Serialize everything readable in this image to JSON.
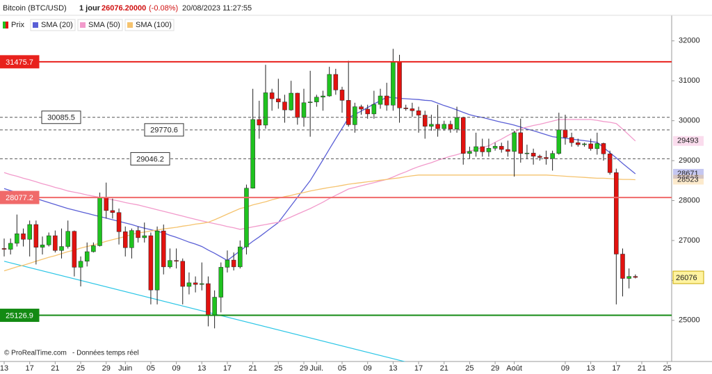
{
  "chart_data": {
    "type": "candlestick",
    "header": {
      "instrument": "Bitcoin (BTC/USD)",
      "period": "1 jour",
      "price_text": "26076.20000",
      "change": "(-0.08%)",
      "datetime": "20/08/2023 11:27:55"
    },
    "footer": {
      "source": "© ProRealTime.com",
      "note": "- Données temps réel"
    },
    "price_name": "Prix",
    "up_color": "#1fc21f",
    "down_color": "#e2120f",
    "categories": [
      "13",
      null,
      null,
      null,
      "17",
      null,
      null,
      null,
      "21",
      null,
      null,
      null,
      "25",
      null,
      null,
      null,
      "29",
      null,
      null,
      "Juin",
      null,
      null,
      null,
      "05",
      null,
      null,
      null,
      "09",
      null,
      null,
      null,
      "13",
      null,
      null,
      null,
      "17",
      null,
      null,
      null,
      "21",
      null,
      null,
      null,
      "25",
      null,
      null,
      null,
      "29",
      null,
      "Juil.",
      null,
      null,
      null,
      "05",
      null,
      null,
      null,
      "09",
      null,
      null,
      null,
      "13",
      null,
      null,
      null,
      "17",
      null,
      null,
      null,
      "21",
      null,
      null,
      null,
      "25",
      null,
      null,
      null,
      "29",
      null,
      null,
      "Août",
      null,
      null,
      null,
      null,
      null,
      null,
      null,
      "09",
      null,
      null,
      null,
      "13",
      null,
      null,
      null,
      "17",
      null,
      null,
      null,
      "21",
      null,
      null,
      null,
      "25"
    ],
    "open": [
      26800,
      26780,
      26930,
      27170,
      27030,
      27400,
      26830,
      26890,
      27120,
      26750,
      26850,
      27230,
      26330,
      26480,
      26720,
      26870,
      28080,
      27750,
      27700,
      27220,
      26820,
      27250,
      27070,
      27120,
      25760,
      27240,
      26340,
      26500,
      26480,
      25850,
      25940,
      25900,
      25920,
      25120,
      25580,
      26330,
      26510,
      26340,
      26840,
      28310,
      30030,
      29890,
      30700,
      30550,
      30470,
      30270,
      30690,
      30080,
      30450,
      30470,
      30590,
      30620,
      31160,
      30770,
      30510,
      29900,
      30350,
      30290,
      30170,
      30410,
      30620,
      30390,
      31470,
      30320,
      30300,
      30250,
      30140,
      29860,
      29910,
      29800,
      29910,
      29790,
      30080,
      29180,
      29230,
      29350,
      29220,
      29310,
      29360,
      29280,
      29230,
      29700,
      29180,
      29190,
      29110,
      29080,
      29050,
      29180,
      29770,
      29580,
      29450,
      29400,
      29420,
      29300,
      29430,
      29170,
      28700,
      26660,
      26050,
      26100,
      null,
      null,
      null,
      null,
      null
    ],
    "high": [
      27050,
      27050,
      27650,
      27300,
      27500,
      27500,
      27100,
      27200,
      27250,
      27300,
      27500,
      27250,
      26600,
      26950,
      26950,
      28200,
      28450,
      28050,
      27800,
      27350,
      27300,
      27350,
      27450,
      27200,
      27350,
      27400,
      26800,
      26800,
      26550,
      26200,
      26100,
      26450,
      26100,
      25750,
      26450,
      26750,
      26700,
      27000,
      28400,
      30800,
      30500,
      31400,
      30800,
      31050,
      30650,
      31000,
      30700,
      30800,
      31250,
      30650,
      30750,
      31350,
      31300,
      30850,
      31500,
      30450,
      30400,
      30400,
      30750,
      30800,
      30950,
      31800,
      31650,
      30400,
      30450,
      30350,
      30250,
      30150,
      30400,
      30000,
      30000,
      30350,
      30100,
      29350,
      29700,
      29550,
      29550,
      29450,
      29450,
      29500,
      29750,
      30050,
      29400,
      29300,
      29150,
      29250,
      29250,
      30200,
      30150,
      29700,
      29550,
      29450,
      29550,
      29700,
      29450,
      29250,
      28800,
      26800,
      26300,
      26150,
      null,
      null,
      null,
      null,
      null
    ],
    "low": [
      26600,
      26650,
      26850,
      26850,
      26600,
      26400,
      26650,
      26850,
      26700,
      26550,
      26800,
      26100,
      25850,
      26350,
      26700,
      26850,
      27550,
      27550,
      26900,
      26600,
      26550,
      26950,
      26950,
      25400,
      25400,
      26150,
      26300,
      26300,
      25400,
      25650,
      25700,
      25750,
      24850,
      24800,
      25200,
      26200,
      26250,
      26300,
      26650,
      28300,
      29550,
      29800,
      30250,
      30300,
      29950,
      30250,
      29900,
      29850,
      29600,
      30350,
      30250,
      30600,
      30650,
      30200,
      29850,
      29700,
      30150,
      30050,
      30050,
      30300,
      30250,
      30250,
      29950,
      30250,
      30100,
      29700,
      29550,
      29750,
      29600,
      29750,
      29700,
      29700,
      28900,
      29050,
      29100,
      29100,
      29100,
      29250,
      29200,
      29100,
      28600,
      28950,
      29050,
      28900,
      29000,
      28900,
      28750,
      29150,
      29400,
      29350,
      29350,
      29350,
      29250,
      29150,
      29000,
      28650,
      25400,
      25600,
      25800,
      26050,
      null,
      null,
      null,
      null,
      null
    ],
    "close": [
      26780,
      26930,
      27170,
      27030,
      27400,
      26830,
      26890,
      27120,
      26750,
      26850,
      27230,
      26330,
      26480,
      26720,
      26870,
      28080,
      27750,
      27700,
      27220,
      26820,
      27250,
      27070,
      27120,
      25760,
      27240,
      26340,
      26500,
      26480,
      25850,
      25940,
      25900,
      25920,
      25120,
      25580,
      26330,
      26510,
      26340,
      26840,
      28310,
      30030,
      29890,
      30700,
      30550,
      30470,
      30270,
      30690,
      30080,
      30450,
      30470,
      30590,
      30620,
      31160,
      30770,
      30510,
      29900,
      30350,
      30290,
      30170,
      30410,
      30620,
      30390,
      31470,
      30320,
      30300,
      30250,
      30140,
      29860,
      29910,
      29800,
      29910,
      29790,
      30080,
      29180,
      29230,
      29350,
      29220,
      29310,
      29360,
      29280,
      29230,
      29700,
      29180,
      29190,
      29110,
      29080,
      29050,
      29180,
      29770,
      29580,
      29450,
      29400,
      29420,
      29300,
      29430,
      29170,
      28700,
      26660,
      26050,
      26100,
      26076.2,
      null,
      null,
      null,
      null,
      null
    ],
    "last_price": {
      "value": 26076.2,
      "label": "26076"
    },
    "series": [
      {
        "name": "SMA (20)",
        "color": "#5a5fd6",
        "values": [
          28300,
          28250,
          28200,
          28150,
          28100,
          28050,
          28000,
          27950,
          27900,
          27850,
          27800,
          27760,
          27720,
          27680,
          27640,
          27600,
          27560,
          27520,
          27480,
          27440,
          27400,
          27350,
          27310,
          27270,
          27230,
          27190,
          27130,
          27080,
          27020,
          26960,
          26910,
          26850,
          26760,
          26680,
          26590,
          26500,
          26620,
          26740,
          26860,
          26980,
          27090,
          27210,
          27330,
          27450,
          27660,
          27870,
          28080,
          28290,
          28500,
          28760,
          29020,
          29290,
          29550,
          29810,
          30070,
          30160,
          30240,
          30330,
          30420,
          30500,
          30590,
          30580,
          30560,
          30550,
          30540,
          30530,
          30510,
          30500,
          30440,
          30380,
          30330,
          30270,
          30210,
          30150,
          30110,
          30080,
          30040,
          30000,
          29960,
          29930,
          29890,
          29840,
          29790,
          29750,
          29700,
          29650,
          29600,
          29580,
          29560,
          29540,
          29520,
          29500,
          29480,
          29460,
          29330,
          29200,
          29070,
          28930,
          28800,
          28671,
          null,
          null,
          null,
          null,
          null
        ]
      },
      {
        "name": "SMA (50)",
        "color": "#f29acb",
        "values": [
          28700,
          28650,
          28610,
          28560,
          28520,
          28470,
          28420,
          28380,
          28330,
          28290,
          28240,
          28210,
          28180,
          28140,
          28110,
          28080,
          28050,
          28020,
          27990,
          27950,
          27920,
          27890,
          27850,
          27810,
          27770,
          27730,
          27690,
          27650,
          27610,
          27570,
          27530,
          27490,
          27455,
          27420,
          27390,
          27350,
          27320,
          27280,
          27310,
          27340,
          27370,
          27400,
          27430,
          27455,
          27520,
          27590,
          27660,
          27730,
          27800,
          27880,
          27960,
          28050,
          28130,
          28210,
          28290,
          28330,
          28370,
          28410,
          28450,
          28490,
          28530,
          28590,
          28660,
          28720,
          28790,
          28850,
          28900,
          28950,
          29010,
          29060,
          29110,
          29150,
          29200,
          29240,
          29280,
          29330,
          29370,
          29460,
          29540,
          29630,
          29710,
          29800,
          29840,
          29880,
          29910,
          29950,
          29990,
          30030,
          30030,
          30030,
          30030,
          30030,
          30030,
          30010,
          29980,
          29960,
          29930,
          29790,
          29640,
          29493,
          null,
          null,
          null,
          null,
          null
        ]
      },
      {
        "name": "SMA (100)",
        "color": "#f5c36e",
        "values": [
          26240,
          26290,
          26340,
          26380,
          26430,
          26480,
          26530,
          26580,
          26620,
          26670,
          26720,
          26760,
          26810,
          26850,
          26890,
          26930,
          26980,
          27020,
          27060,
          27100,
          27150,
          27190,
          27210,
          27240,
          27260,
          27290,
          27310,
          27330,
          27360,
          27380,
          27410,
          27430,
          27455,
          27520,
          27590,
          27660,
          27730,
          27800,
          27840,
          27890,
          27930,
          27970,
          28020,
          28060,
          28100,
          28130,
          28170,
          28200,
          28240,
          28270,
          28300,
          28330,
          28350,
          28380,
          28410,
          28430,
          28450,
          28470,
          28490,
          28510,
          28530,
          28550,
          28570,
          28600,
          28620,
          28640,
          28640,
          28640,
          28640,
          28640,
          28640,
          28640,
          28640,
          28640,
          28640,
          28640,
          28640,
          28640,
          28640,
          28640,
          28640,
          28640,
          28640,
          28640,
          28640,
          28640,
          28630,
          28620,
          28610,
          28600,
          28590,
          28580,
          28570,
          28560,
          28560,
          28550,
          28540,
          28530,
          28530,
          28523,
          null,
          null,
          null,
          null,
          null
        ]
      }
    ],
    "levels": [
      {
        "value": 31475.7,
        "color": "#e8211c",
        "style": "solid"
      },
      {
        "value": 30085.5,
        "color": "#555555",
        "style": "dashed"
      },
      {
        "value": 29770.6,
        "color": "#555555",
        "style": "dashed"
      },
      {
        "value": 29046.2,
        "color": "#555555",
        "style": "dashed"
      },
      {
        "value": 28077.2,
        "color": "#f06a6a",
        "style": "solid"
      },
      {
        "value": 25126.9,
        "color": "#138a13",
        "style": "solid"
      }
    ],
    "trendline": {
      "color": "#2cc6e6",
      "start": {
        "category": 0,
        "value": 26480
      },
      "end": {
        "category": 63,
        "value": 23960
      }
    },
    "ylim": [
      23970,
      32640
    ],
    "yticks": [
      25000,
      26000,
      27000,
      28000,
      29000,
      30000,
      31000,
      32000
    ],
    "grid": false
  }
}
